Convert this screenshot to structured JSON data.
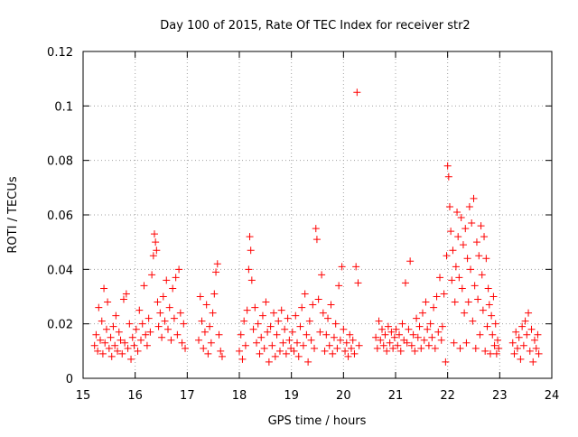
{
  "chart_data": {
    "type": "scatter",
    "title": "Day 100 of 2015, Rate Of TEC Index for receiver str2",
    "xlabel": "GPS time / hours",
    "ylabel": "ROTI / TECUs",
    "xlim": [
      15,
      24
    ],
    "ylim": [
      0,
      0.12
    ],
    "xticks": [
      "15",
      "16",
      "17",
      "18",
      "19",
      "20",
      "21",
      "22",
      "23",
      "24"
    ],
    "yticks": [
      "0",
      "0.02",
      "0.04",
      "0.06",
      "0.08",
      "0.1",
      "0.12"
    ],
    "grid": true,
    "marker": "plus",
    "color": "#ff0000",
    "series": [
      {
        "points": [
          [
            15.22,
            0.012
          ],
          [
            15.25,
            0.016
          ],
          [
            15.28,
            0.01
          ],
          [
            15.3,
            0.026
          ],
          [
            15.33,
            0.014
          ],
          [
            15.36,
            0.021
          ],
          [
            15.38,
            0.009
          ],
          [
            15.4,
            0.033
          ],
          [
            15.42,
            0.013
          ],
          [
            15.45,
            0.018
          ],
          [
            15.47,
            0.028
          ],
          [
            15.5,
            0.011
          ],
          [
            15.53,
            0.015
          ],
          [
            15.55,
            0.008
          ],
          [
            15.58,
            0.019
          ],
          [
            15.61,
            0.012
          ],
          [
            15.63,
            0.023
          ],
          [
            15.66,
            0.01
          ],
          [
            15.69,
            0.017
          ],
          [
            15.72,
            0.014
          ],
          [
            15.75,
            0.009
          ],
          [
            15.78,
            0.029
          ],
          [
            15.8,
            0.013
          ],
          [
            15.83,
            0.031
          ],
          [
            15.86,
            0.011
          ],
          [
            15.89,
            0.02
          ],
          [
            15.92,
            0.007
          ],
          [
            15.95,
            0.015
          ],
          [
            15.98,
            0.012
          ],
          [
            16.02,
            0.018
          ],
          [
            16.05,
            0.01
          ],
          [
            16.08,
            0.025
          ],
          [
            16.11,
            0.014
          ],
          [
            16.14,
            0.02
          ],
          [
            16.17,
            0.034
          ],
          [
            16.2,
            0.016
          ],
          [
            16.23,
            0.012
          ],
          [
            16.26,
            0.022
          ],
          [
            16.29,
            0.017
          ],
          [
            16.32,
            0.038
          ],
          [
            16.35,
            0.045
          ],
          [
            16.37,
            0.053
          ],
          [
            16.39,
            0.05
          ],
          [
            16.41,
            0.047
          ],
          [
            16.43,
            0.028
          ],
          [
            16.45,
            0.019
          ],
          [
            16.48,
            0.024
          ],
          [
            16.51,
            0.015
          ],
          [
            16.54,
            0.03
          ],
          [
            16.57,
            0.021
          ],
          [
            16.6,
            0.036
          ],
          [
            16.63,
            0.018
          ],
          [
            16.66,
            0.026
          ],
          [
            16.69,
            0.014
          ],
          [
            16.72,
            0.033
          ],
          [
            16.75,
            0.022
          ],
          [
            16.78,
            0.037
          ],
          [
            16.81,
            0.016
          ],
          [
            16.84,
            0.04
          ],
          [
            16.87,
            0.024
          ],
          [
            16.9,
            0.013
          ],
          [
            16.93,
            0.02
          ],
          [
            16.96,
            0.011
          ],
          [
            17.22,
            0.014
          ],
          [
            17.25,
            0.03
          ],
          [
            17.28,
            0.021
          ],
          [
            17.31,
            0.011
          ],
          [
            17.34,
            0.017
          ],
          [
            17.37,
            0.027
          ],
          [
            17.4,
            0.009
          ],
          [
            17.43,
            0.019
          ],
          [
            17.46,
            0.013
          ],
          [
            17.49,
            0.024
          ],
          [
            17.52,
            0.031
          ],
          [
            17.55,
            0.039
          ],
          [
            17.58,
            0.042
          ],
          [
            17.61,
            0.016
          ],
          [
            17.64,
            0.01
          ],
          [
            17.67,
            0.008
          ],
          [
            18.0,
            0.01
          ],
          [
            18.03,
            0.016
          ],
          [
            18.06,
            0.007
          ],
          [
            18.09,
            0.021
          ],
          [
            18.12,
            0.012
          ],
          [
            18.15,
            0.025
          ],
          [
            18.18,
            0.04
          ],
          [
            18.2,
            0.052
          ],
          [
            18.22,
            0.047
          ],
          [
            18.24,
            0.036
          ],
          [
            18.27,
            0.018
          ],
          [
            18.3,
            0.026
          ],
          [
            18.33,
            0.013
          ],
          [
            18.36,
            0.02
          ],
          [
            18.39,
            0.009
          ],
          [
            18.42,
            0.015
          ],
          [
            18.45,
            0.023
          ],
          [
            18.48,
            0.011
          ],
          [
            18.51,
            0.028
          ],
          [
            18.54,
            0.017
          ],
          [
            18.57,
            0.006
          ],
          [
            18.6,
            0.019
          ],
          [
            18.63,
            0.012
          ],
          [
            18.66,
            0.024
          ],
          [
            18.69,
            0.008
          ],
          [
            18.72,
            0.016
          ],
          [
            18.75,
            0.021
          ],
          [
            18.78,
            0.01
          ],
          [
            18.81,
            0.025
          ],
          [
            18.84,
            0.013
          ],
          [
            18.87,
            0.018
          ],
          [
            18.9,
            0.009
          ],
          [
            18.93,
            0.022
          ],
          [
            18.96,
            0.014
          ],
          [
            18.99,
            0.011
          ],
          [
            19.02,
            0.017
          ],
          [
            19.05,
            0.01
          ],
          [
            19.08,
            0.023
          ],
          [
            19.11,
            0.013
          ],
          [
            19.14,
            0.008
          ],
          [
            19.17,
            0.019
          ],
          [
            19.2,
            0.026
          ],
          [
            19.23,
            0.012
          ],
          [
            19.26,
            0.031
          ],
          [
            19.29,
            0.016
          ],
          [
            19.32,
            0.006
          ],
          [
            19.35,
            0.021
          ],
          [
            19.38,
            0.014
          ],
          [
            19.41,
            0.027
          ],
          [
            19.44,
            0.011
          ],
          [
            19.47,
            0.055
          ],
          [
            19.49,
            0.051
          ],
          [
            19.52,
            0.029
          ],
          [
            19.55,
            0.017
          ],
          [
            19.58,
            0.038
          ],
          [
            19.61,
            0.024
          ],
          [
            19.64,
            0.01
          ],
          [
            19.67,
            0.016
          ],
          [
            19.7,
            0.022
          ],
          [
            19.73,
            0.012
          ],
          [
            19.76,
            0.027
          ],
          [
            19.79,
            0.009
          ],
          [
            19.82,
            0.015
          ],
          [
            19.85,
            0.02
          ],
          [
            19.88,
            0.011
          ],
          [
            19.91,
            0.034
          ],
          [
            19.94,
            0.014
          ],
          [
            19.97,
            0.041
          ],
          [
            20.0,
            0.018
          ],
          [
            20.03,
            0.01
          ],
          [
            20.06,
            0.013
          ],
          [
            20.09,
            0.008
          ],
          [
            20.12,
            0.016
          ],
          [
            20.15,
            0.011
          ],
          [
            20.18,
            0.014
          ],
          [
            20.21,
            0.009
          ],
          [
            20.24,
            0.041
          ],
          [
            20.26,
            0.105
          ],
          [
            20.28,
            0.035
          ],
          [
            20.3,
            0.012
          ],
          [
            20.62,
            0.015
          ],
          [
            20.65,
            0.011
          ],
          [
            20.68,
            0.021
          ],
          [
            20.71,
            0.014
          ],
          [
            20.74,
            0.018
          ],
          [
            20.77,
            0.012
          ],
          [
            20.8,
            0.016
          ],
          [
            20.83,
            0.01
          ],
          [
            20.86,
            0.019
          ],
          [
            20.89,
            0.013
          ],
          [
            20.92,
            0.017
          ],
          [
            20.95,
            0.011
          ],
          [
            20.98,
            0.015
          ],
          [
            21.01,
            0.018
          ],
          [
            21.04,
            0.012
          ],
          [
            21.07,
            0.016
          ],
          [
            21.1,
            0.01
          ],
          [
            21.13,
            0.02
          ],
          [
            21.16,
            0.014
          ],
          [
            21.19,
            0.035
          ],
          [
            21.22,
            0.013
          ],
          [
            21.25,
            0.018
          ],
          [
            21.28,
            0.043
          ],
          [
            21.31,
            0.012
          ],
          [
            21.34,
            0.016
          ],
          [
            21.37,
            0.01
          ],
          [
            21.4,
            0.022
          ],
          [
            21.43,
            0.015
          ],
          [
            21.46,
            0.019
          ],
          [
            21.49,
            0.011
          ],
          [
            21.52,
            0.024
          ],
          [
            21.55,
            0.014
          ],
          [
            21.58,
            0.028
          ],
          [
            21.61,
            0.018
          ],
          [
            21.64,
            0.012
          ],
          [
            21.67,
            0.02
          ],
          [
            21.7,
            0.015
          ],
          [
            21.73,
            0.026
          ],
          [
            21.76,
            0.011
          ],
          [
            21.79,
            0.03
          ],
          [
            21.82,
            0.017
          ],
          [
            21.85,
            0.037
          ],
          [
            21.88,
            0.014
          ],
          [
            21.9,
            0.019
          ],
          [
            21.93,
            0.031
          ],
          [
            21.96,
            0.006
          ],
          [
            21.98,
            0.045
          ],
          [
            22.0,
            0.078
          ],
          [
            22.02,
            0.074
          ],
          [
            22.04,
            0.063
          ],
          [
            22.06,
            0.054
          ],
          [
            22.08,
            0.036
          ],
          [
            22.1,
            0.047
          ],
          [
            22.12,
            0.013
          ],
          [
            22.14,
            0.028
          ],
          [
            22.16,
            0.041
          ],
          [
            22.18,
            0.061
          ],
          [
            22.2,
            0.052
          ],
          [
            22.22,
            0.037
          ],
          [
            22.24,
            0.011
          ],
          [
            22.26,
            0.059
          ],
          [
            22.28,
            0.033
          ],
          [
            22.3,
            0.049
          ],
          [
            22.32,
            0.024
          ],
          [
            22.34,
            0.055
          ],
          [
            22.36,
            0.013
          ],
          [
            22.38,
            0.044
          ],
          [
            22.4,
            0.028
          ],
          [
            22.42,
            0.063
          ],
          [
            22.44,
            0.04
          ],
          [
            22.46,
            0.057
          ],
          [
            22.48,
            0.021
          ],
          [
            22.5,
            0.066
          ],
          [
            22.52,
            0.034
          ],
          [
            22.54,
            0.011
          ],
          [
            22.56,
            0.05
          ],
          [
            22.58,
            0.029
          ],
          [
            22.6,
            0.045
          ],
          [
            22.62,
            0.016
          ],
          [
            22.64,
            0.056
          ],
          [
            22.66,
            0.038
          ],
          [
            22.68,
            0.025
          ],
          [
            22.7,
            0.052
          ],
          [
            22.72,
            0.01
          ],
          [
            22.74,
            0.044
          ],
          [
            22.76,
            0.019
          ],
          [
            22.78,
            0.033
          ],
          [
            22.8,
            0.027
          ],
          [
            22.82,
            0.009
          ],
          [
            22.84,
            0.023
          ],
          [
            22.86,
            0.016
          ],
          [
            22.88,
            0.03
          ],
          [
            22.9,
            0.012
          ],
          [
            22.92,
            0.02
          ],
          [
            22.94,
            0.009
          ],
          [
            22.96,
            0.014
          ],
          [
            22.98,
            0.011
          ],
          [
            23.25,
            0.013
          ],
          [
            23.28,
            0.009
          ],
          [
            23.31,
            0.017
          ],
          [
            23.34,
            0.011
          ],
          [
            23.37,
            0.015
          ],
          [
            23.4,
            0.007
          ],
          [
            23.43,
            0.019
          ],
          [
            23.46,
            0.012
          ],
          [
            23.49,
            0.021
          ],
          [
            23.52,
            0.016
          ],
          [
            23.55,
            0.024
          ],
          [
            23.58,
            0.01
          ],
          [
            23.61,
            0.018
          ],
          [
            23.64,
            0.006
          ],
          [
            23.67,
            0.014
          ],
          [
            23.7,
            0.011
          ],
          [
            23.73,
            0.016
          ],
          [
            23.75,
            0.009
          ]
        ]
      }
    ]
  }
}
